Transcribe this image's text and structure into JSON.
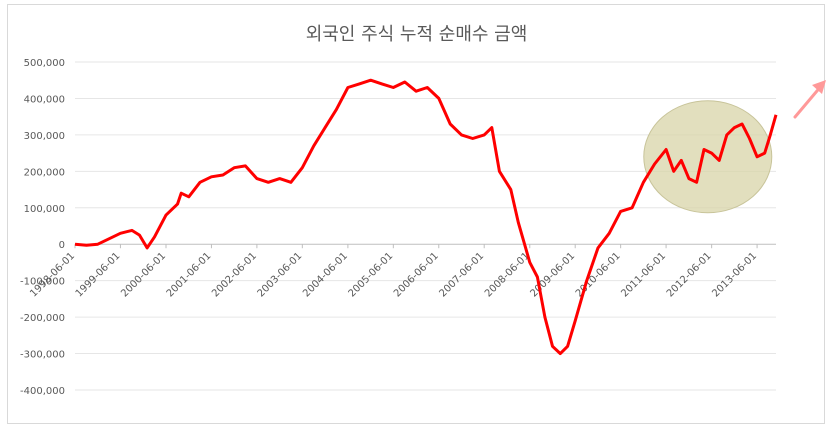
{
  "chart_data": {
    "type": "line",
    "title": "외국인 주식 누적 순매수 금액",
    "xlabel": "",
    "ylabel": "",
    "ylim": [
      -400000,
      500000
    ],
    "yticks": [
      "-400,000",
      "-300,000",
      "-200,000",
      "-100,000",
      "0",
      "100,000",
      "200,000",
      "300,000",
      "400,000",
      "500,000"
    ],
    "ytick_values": [
      -400000,
      -300000,
      -200000,
      -100000,
      0,
      100000,
      200000,
      300000,
      400000,
      500000
    ],
    "xlim": [
      "1998-06-01",
      "2013-10-31"
    ],
    "xticks": [
      "1998-06-01",
      "1999-06-01",
      "2000-06-01",
      "2001-06-01",
      "2002-06-01",
      "2003-06-01",
      "2004-06-01",
      "2005-06-01",
      "2006-06-01",
      "2007-06-01",
      "2008-06-01",
      "2009-06-01",
      "2010-06-01",
      "2011-06-01",
      "2012-06-01",
      "2013-06-01"
    ],
    "grid": true,
    "legend": "none",
    "series": [
      {
        "color": "#ff0000",
        "points": [
          [
            "1998-06-01",
            0
          ],
          [
            "1998-09-01",
            -3000
          ],
          [
            "1998-12-01",
            0
          ],
          [
            "1999-03-01",
            15000
          ],
          [
            "1999-06-01",
            30000
          ],
          [
            "1999-09-01",
            38000
          ],
          [
            "1999-11-01",
            25000
          ],
          [
            "2000-01-01",
            -10000
          ],
          [
            "2000-03-01",
            20000
          ],
          [
            "2000-06-01",
            80000
          ],
          [
            "2000-09-01",
            110000
          ],
          [
            "2000-10-01",
            140000
          ],
          [
            "2000-12-01",
            130000
          ],
          [
            "2001-03-01",
            170000
          ],
          [
            "2001-06-01",
            185000
          ],
          [
            "2001-09-01",
            190000
          ],
          [
            "2001-12-01",
            210000
          ],
          [
            "2002-03-01",
            215000
          ],
          [
            "2002-06-01",
            180000
          ],
          [
            "2002-09-01",
            170000
          ],
          [
            "2002-12-01",
            180000
          ],
          [
            "2003-03-01",
            170000
          ],
          [
            "2003-06-01",
            210000
          ],
          [
            "2003-09-01",
            270000
          ],
          [
            "2003-12-01",
            320000
          ],
          [
            "2004-03-01",
            370000
          ],
          [
            "2004-06-01",
            430000
          ],
          [
            "2004-09-01",
            440000
          ],
          [
            "2004-12-01",
            450000
          ],
          [
            "2005-03-01",
            440000
          ],
          [
            "2005-06-01",
            430000
          ],
          [
            "2005-09-01",
            445000
          ],
          [
            "2005-12-01",
            420000
          ],
          [
            "2006-03-01",
            430000
          ],
          [
            "2006-06-01",
            400000
          ],
          [
            "2006-09-01",
            330000
          ],
          [
            "2006-12-01",
            300000
          ],
          [
            "2007-03-01",
            290000
          ],
          [
            "2007-06-01",
            300000
          ],
          [
            "2007-08-01",
            320000
          ],
          [
            "2007-10-01",
            200000
          ],
          [
            "2008-01-01",
            150000
          ],
          [
            "2008-03-01",
            60000
          ],
          [
            "2008-06-01",
            -50000
          ],
          [
            "2008-08-01",
            -90000
          ],
          [
            "2008-10-01",
            -200000
          ],
          [
            "2008-12-01",
            -280000
          ],
          [
            "2009-02-01",
            -300000
          ],
          [
            "2009-04-01",
            -280000
          ],
          [
            "2009-06-01",
            -210000
          ],
          [
            "2009-09-01",
            -100000
          ],
          [
            "2009-12-01",
            -10000
          ],
          [
            "2010-03-01",
            30000
          ],
          [
            "2010-06-01",
            90000
          ],
          [
            "2010-09-01",
            100000
          ],
          [
            "2010-12-01",
            170000
          ],
          [
            "2011-03-01",
            220000
          ],
          [
            "2011-06-01",
            260000
          ],
          [
            "2011-08-01",
            200000
          ],
          [
            "2011-10-01",
            230000
          ],
          [
            "2011-12-01",
            180000
          ],
          [
            "2012-02-01",
            170000
          ],
          [
            "2012-04-01",
            260000
          ],
          [
            "2012-06-01",
            250000
          ],
          [
            "2012-08-01",
            230000
          ],
          [
            "2012-10-01",
            300000
          ],
          [
            "2012-12-01",
            320000
          ],
          [
            "2013-02-01",
            330000
          ],
          [
            "2013-04-01",
            290000
          ],
          [
            "2013-06-01",
            240000
          ],
          [
            "2013-08-01",
            250000
          ],
          [
            "2013-09-15",
            300000
          ],
          [
            "2013-10-31",
            355000
          ]
        ]
      }
    ],
    "annotations": [
      {
        "shape": "ellipse",
        "fill": "#d8d4a8",
        "x_center": "2012-05-01",
        "y_center": 240000
      },
      {
        "shape": "arrow",
        "color": "#ff9999"
      }
    ]
  }
}
